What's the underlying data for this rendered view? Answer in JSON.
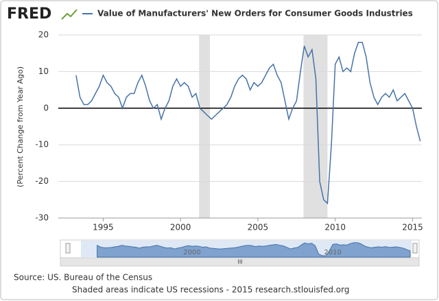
{
  "chart_data": {
    "type": "line",
    "logo": "FRED",
    "title": "Value of Manufacturers' New Orders for Consumer Goods Industries",
    "y_label": "(Percent Change from Year Ago)",
    "source": "Source: US. Bureau of the Census",
    "note": "Shaded areas indicate US recessions - 2015 research.stlouisfed.org",
    "x": [
      1993.25,
      1993.5,
      1993.75,
      1994,
      1994.25,
      1994.5,
      1994.75,
      1995,
      1995.25,
      1995.5,
      1995.75,
      1996,
      1996.25,
      1996.5,
      1996.75,
      1997,
      1997.25,
      1997.5,
      1997.75,
      1998,
      1998.25,
      1998.5,
      1998.75,
      1999,
      1999.25,
      1999.5,
      1999.75,
      2000,
      2000.25,
      2000.5,
      2000.75,
      2001,
      2001.25,
      2001.5,
      2001.75,
      2002,
      2002.25,
      2002.5,
      2002.75,
      2003,
      2003.25,
      2003.5,
      2003.75,
      2004,
      2004.25,
      2004.5,
      2004.75,
      2005,
      2005.25,
      2005.5,
      2005.75,
      2006,
      2006.25,
      2006.5,
      2006.75,
      2007,
      2007.25,
      2007.5,
      2007.75,
      2008,
      2008.25,
      2008.5,
      2008.75,
      2009,
      2009.25,
      2009.5,
      2009.75,
      2010,
      2010.25,
      2010.5,
      2010.75,
      2011,
      2011.25,
      2011.5,
      2011.75,
      2012,
      2012.25,
      2012.5,
      2012.75,
      2013,
      2013.25,
      2013.5,
      2013.75,
      2014,
      2014.25,
      2014.5,
      2014.75,
      2015,
      2015.25,
      2015.5
    ],
    "series": [
      {
        "name": "Value of Manufacturers' New Orders for Consumer Goods Industries",
        "color": "#4572a7",
        "values": [
          9,
          3,
          1,
          1,
          2,
          4,
          6,
          9,
          7,
          6,
          4,
          3,
          0,
          3,
          4,
          4,
          7,
          9,
          6,
          2,
          0,
          1,
          -3,
          0,
          2,
          6,
          8,
          6,
          7,
          6,
          3,
          4,
          0,
          -1,
          -2,
          -3,
          -2,
          -1,
          0,
          1,
          3,
          6,
          8,
          9,
          8,
          5,
          7,
          6,
          7,
          9,
          11,
          12,
          9,
          7,
          2,
          -3,
          0,
          2,
          10,
          17,
          14,
          16,
          8,
          -20,
          -25,
          -26,
          -10,
          12,
          14,
          10,
          11,
          10,
          15,
          18,
          18,
          14,
          7,
          3,
          1,
          3,
          4,
          3,
          5,
          2,
          3,
          4,
          2,
          0,
          -5,
          -9
        ]
      }
    ],
    "xlim": [
      1992.1,
      2015.6
    ],
    "ylim": [
      -30,
      20
    ],
    "xticks": [
      1995,
      2000,
      2005,
      2010,
      2015
    ],
    "yticks": [
      -30,
      -20,
      -10,
      0,
      10,
      20
    ],
    "recessions": [
      [
        2001.2,
        2001.9
      ],
      [
        2007.95,
        2009.5
      ]
    ],
    "navigator_ticks": [
      2000,
      2010
    ],
    "grid": true
  }
}
